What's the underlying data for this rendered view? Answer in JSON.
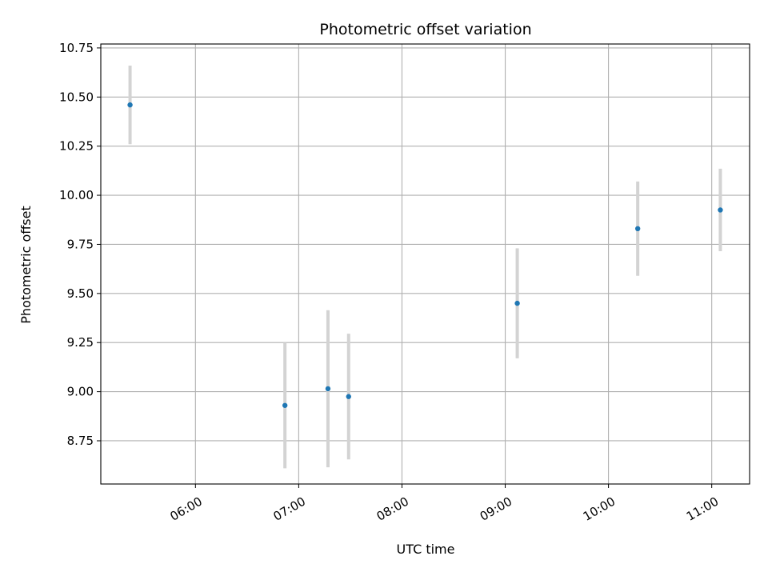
{
  "chart_data": {
    "type": "scatter",
    "title": "Photometric offset variation",
    "xlabel": "UTC time",
    "ylabel": "Photometric offset",
    "x_ticks": [
      "06:00",
      "07:00",
      "08:00",
      "09:00",
      "10:00",
      "11:00"
    ],
    "y_ticks": [
      "8.75",
      "9.00",
      "9.25",
      "9.50",
      "9.75",
      "10.00",
      "10.25",
      "10.50",
      "10.75"
    ],
    "xlim": [
      "05:05",
      "11:22"
    ],
    "ylim": [
      8.53,
      10.77
    ],
    "grid": true,
    "points": [
      {
        "x": "05:22",
        "y": 10.46,
        "yerr": 0.2
      },
      {
        "x": "06:52",
        "y": 8.93,
        "yerr": 0.32
      },
      {
        "x": "07:17",
        "y": 9.015,
        "yerr": 0.4
      },
      {
        "x": "07:29",
        "y": 8.975,
        "yerr": 0.32
      },
      {
        "x": "09:07",
        "y": 9.45,
        "yerr": 0.28
      },
      {
        "x": "10:17",
        "y": 9.83,
        "yerr": 0.24
      },
      {
        "x": "11:05",
        "y": 9.925,
        "yerr": 0.21
      }
    ],
    "colors": {
      "point": "#1f77b4",
      "errorbar": "#d3d3d3",
      "grid": "#b0b0b0"
    }
  }
}
